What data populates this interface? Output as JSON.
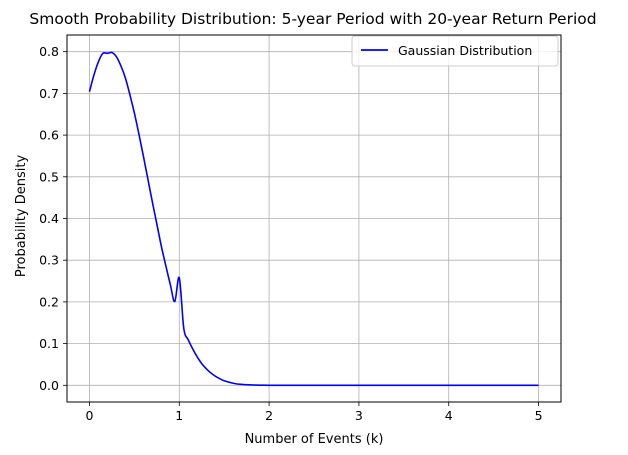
{
  "chart_data": {
    "type": "line",
    "title": "Smooth Probability Distribution: 5-year Period with 20-year Return Period",
    "xlabel": "Number of Events (k)",
    "ylabel": "Probability Density",
    "xlim": [
      -0.25,
      5.25
    ],
    "ylim": [
      -0.04,
      0.84
    ],
    "x_ticks": [
      0,
      1,
      2,
      3,
      4,
      5
    ],
    "x_tick_labels": [
      "0",
      "1",
      "2",
      "3",
      "4",
      "5"
    ],
    "y_ticks": [
      0.0,
      0.1,
      0.2,
      0.3,
      0.4,
      0.5,
      0.6,
      0.7,
      0.8
    ],
    "y_tick_labels": [
      "0.0",
      "0.1",
      "0.2",
      "0.3",
      "0.4",
      "0.5",
      "0.6",
      "0.7",
      "0.8"
    ],
    "grid": true,
    "legend_position": "upper right",
    "series": [
      {
        "name": "Gaussian Distribution",
        "color": "#0000ff",
        "x": [
          0,
          0.05,
          0.1,
          0.15,
          0.2,
          0.25,
          0.3,
          0.35,
          0.4,
          0.45,
          0.5,
          0.55,
          0.6,
          0.65,
          0.7,
          0.75,
          0.8,
          0.85,
          0.9,
          0.95,
          1.0,
          1.05,
          1.1,
          1.15,
          1.2,
          1.25,
          1.3,
          1.35,
          1.4,
          1.45,
          1.5,
          1.6,
          1.7,
          1.8,
          1.9,
          2.0,
          2.1,
          2.2,
          2.3,
          2.5,
          2.75,
          3.0,
          3.5,
          4.0,
          4.5,
          5.0
        ],
        "values": [
          0.704,
          0.744,
          0.776,
          0.796,
          0.796,
          0.798,
          0.788,
          0.766,
          0.737,
          0.697,
          0.653,
          0.603,
          0.55,
          0.495,
          0.44,
          0.387,
          0.334,
          0.287,
          0.242,
          0.201,
          0.258,
          0.137,
          0.109,
          0.087,
          0.068,
          0.052,
          0.04,
          0.03,
          0.022,
          0.016,
          0.011,
          0.005,
          0.002,
          0.001,
          0.0004,
          0.0001,
          0.0,
          0.0,
          0.0,
          0.0,
          0.0,
          0.0,
          0.0,
          0.0,
          0.0,
          0.0
        ]
      }
    ]
  }
}
